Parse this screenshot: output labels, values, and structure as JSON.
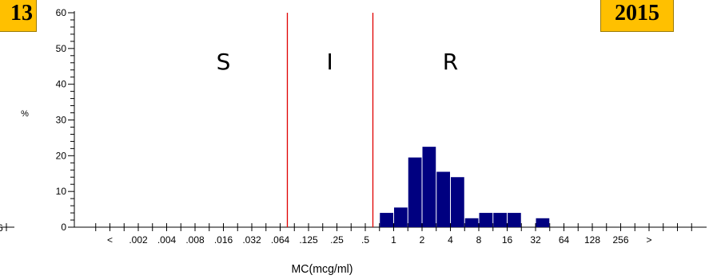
{
  "badges": {
    "left": "13",
    "right": "2015"
  },
  "chart_data": {
    "type": "bar",
    "title": "",
    "xlabel": "MC(mcg/ml)",
    "ylabel": "%",
    "ylim": [
      0,
      60
    ],
    "yticks": [
      0,
      10,
      20,
      30,
      40,
      50,
      60
    ],
    "categories": [
      "<",
      ".002",
      ".004",
      ".008",
      ".016",
      ".032",
      ".064",
      ".125",
      ".25",
      ".5",
      "1",
      "2",
      "4",
      "8",
      "16",
      "32",
      "64",
      "128",
      "256",
      ">"
    ],
    "bars": [
      {
        "x": 9.5,
        "value": 4
      },
      {
        "x": 10,
        "value": 5.5
      },
      {
        "x": 10.5,
        "value": 19.5
      },
      {
        "x": 11,
        "value": 22.5
      },
      {
        "x": 11.5,
        "value": 15.5
      },
      {
        "x": 12,
        "value": 14
      },
      {
        "x": 12.5,
        "value": 2.5
      },
      {
        "x": 13,
        "value": 4
      },
      {
        "x": 13.5,
        "value": 4
      },
      {
        "x": 14,
        "value": 4
      },
      {
        "x": 15,
        "value": 2.5
      }
    ],
    "breakpoints": [
      6.25,
      9.25
    ],
    "regions": [
      {
        "label": "S",
        "x": 4.0
      },
      {
        "label": "I",
        "x": 7.75
      },
      {
        "label": "R",
        "x": 12.0
      }
    ],
    "left_fragment_tick": "6",
    "colors": {
      "bars": "#000080",
      "breakpoint": "#e00000",
      "axis": "#000000"
    }
  }
}
